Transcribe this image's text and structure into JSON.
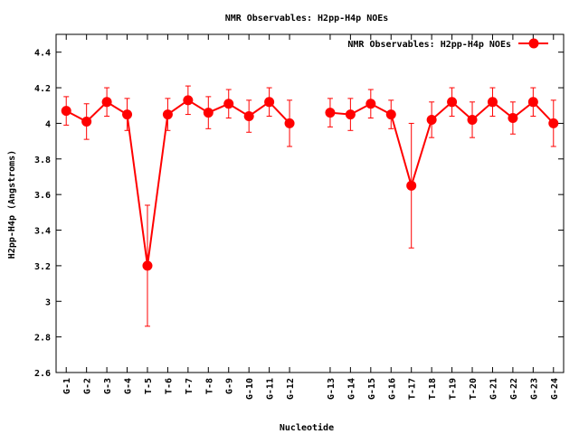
{
  "chart_data": {
    "type": "line",
    "title": "NMR Observables: H2pp-H4p NOEs",
    "xlabel": "Nucleotide",
    "ylabel": "H2pp-H4p (Angstroms)",
    "ylim": [
      2.6,
      4.5
    ],
    "yticks": [
      "2.6",
      "2.8",
      "3",
      "3.2",
      "3.4",
      "3.6",
      "3.8",
      "4",
      "4.2",
      "4.4"
    ],
    "grid": false,
    "legend": "top-right",
    "color": "#ff0000",
    "categories": [
      "G-1",
      "G-2",
      "G-3",
      "G-4",
      "T-5",
      "T-6",
      "T-7",
      "T-8",
      "G-9",
      "G-10",
      "G-11",
      "G-12",
      "G-13",
      "G-14",
      "G-15",
      "G-16",
      "T-17",
      "T-18",
      "T-19",
      "T-20",
      "G-21",
      "G-22",
      "G-23",
      "G-24"
    ],
    "series": [
      {
        "name": "NMR Observables: H2pp-H4p NOEs",
        "segments": [
          {
            "x": [
              1,
              2,
              3,
              4,
              5,
              6,
              7,
              8,
              9,
              10,
              11,
              12
            ],
            "values": [
              4.07,
              4.01,
              4.12,
              4.05,
              3.2,
              4.05,
              4.13,
              4.06,
              4.11,
              4.04,
              4.12,
              4.0
            ],
            "errors": [
              0.08,
              0.1,
              0.08,
              0.09,
              0.34,
              0.09,
              0.08,
              0.09,
              0.08,
              0.09,
              0.08,
              0.13
            ]
          },
          {
            "x": [
              14,
              15,
              16,
              17,
              18,
              19,
              20,
              21,
              22,
              23,
              24,
              25
            ],
            "values": [
              4.06,
              4.05,
              4.11,
              4.05,
              3.65,
              4.02,
              4.12,
              4.02,
              4.12,
              4.03,
              4.12,
              4.0
            ],
            "errors": [
              0.08,
              0.09,
              0.08,
              0.08,
              0.35,
              0.1,
              0.08,
              0.1,
              0.08,
              0.09,
              0.08,
              0.13
            ]
          }
        ]
      }
    ]
  }
}
